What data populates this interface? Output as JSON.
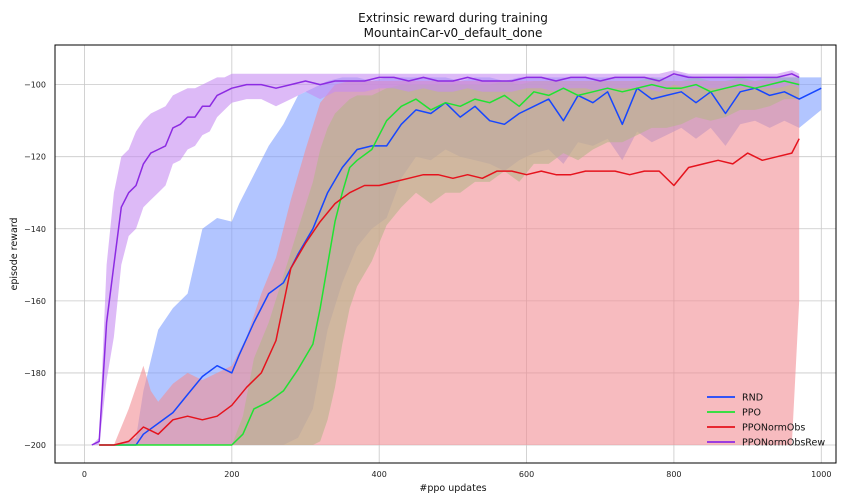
{
  "chart_data": {
    "type": "line",
    "title": "Extrinsic reward during training",
    "subtitle": "MountainCar-v0_default_done",
    "xlabel": "#ppo updates",
    "ylabel": "episode reward",
    "xlim": [
      -40,
      1020
    ],
    "ylim": [
      -205,
      -89
    ],
    "xticks": [
      0,
      200,
      400,
      600,
      800,
      1000
    ],
    "yticks": [
      -200,
      -180,
      -160,
      -140,
      -120,
      -100
    ],
    "grid": true,
    "legend_position": "bottom-right",
    "series": [
      {
        "name": "RND",
        "color": "#1646ff",
        "band_color": "#7f9eff",
        "x": [
          20,
          40,
          70,
          80,
          100,
          120,
          140,
          160,
          180,
          200,
          210,
          230,
          250,
          270,
          290,
          310,
          330,
          350,
          370,
          390,
          410,
          430,
          450,
          470,
          490,
          510,
          530,
          550,
          570,
          590,
          610,
          630,
          650,
          670,
          690,
          710,
          730,
          750,
          770,
          790,
          810,
          830,
          850,
          870,
          890,
          910,
          930,
          950,
          970,
          1000
        ],
        "y": [
          -200,
          -200,
          -200,
          -197,
          -194,
          -191,
          -186,
          -181,
          -178,
          -180,
          -175,
          -166,
          -158,
          -155,
          -147,
          -140,
          -130,
          -123,
          -118,
          -117,
          -117,
          -111,
          -107,
          -108,
          -105,
          -109,
          -106,
          -110,
          -111,
          -108,
          -106,
          -104,
          -110,
          -103,
          -105,
          -102,
          -111,
          -101,
          -104,
          -103,
          -102,
          -105,
          -102,
          -108,
          -102,
          -101,
          -103,
          -102,
          -104,
          -101
        ],
        "upper": [
          -200,
          -200,
          -198,
          -185,
          -168,
          -162,
          -158,
          -140,
          -137,
          -138,
          -133,
          -125,
          -117,
          -111,
          -103,
          -101,
          -99,
          -98,
          -98,
          -99,
          -98,
          -98,
          -98,
          -98,
          -98,
          -99,
          -98,
          -98,
          -99,
          -98,
          -98,
          -98,
          -98,
          -98,
          -98,
          -98,
          -98,
          -98,
          -98,
          -98,
          -97,
          -98,
          -98,
          -98,
          -98,
          -98,
          -98,
          -98,
          -98,
          -98
        ],
        "lower": [
          -200,
          -200,
          -200,
          -200,
          -200,
          -200,
          -200,
          -200,
          -200,
          -200,
          -200,
          -200,
          -200,
          -200,
          -198,
          -190,
          -168,
          -155,
          -145,
          -140,
          -137,
          -126,
          -120,
          -121,
          -118,
          -120,
          -121,
          -122,
          -124,
          -121,
          -119,
          -118,
          -122,
          -116,
          -117,
          -115,
          -121,
          -113,
          -116,
          -114,
          -112,
          -115,
          -112,
          -117,
          -111,
          -110,
          -112,
          -110,
          -112,
          -107
        ]
      },
      {
        "name": "PPO",
        "color": "#20e232",
        "band_color": "#5ff07a",
        "x": [
          20,
          60,
          100,
          150,
          200,
          215,
          230,
          250,
          270,
          290,
          310,
          320,
          330,
          340,
          350,
          360,
          370,
          390,
          410,
          430,
          450,
          470,
          490,
          510,
          530,
          550,
          570,
          590,
          610,
          630,
          650,
          670,
          690,
          710,
          730,
          750,
          770,
          790,
          810,
          830,
          850,
          870,
          890,
          910,
          930,
          950,
          970
        ],
        "y": [
          -200,
          -200,
          -200,
          -200,
          -200,
          -197,
          -190,
          -188,
          -185,
          -179,
          -172,
          -162,
          -150,
          -138,
          -130,
          -123,
          -121,
          -118,
          -110,
          -106,
          -104,
          -107,
          -105,
          -106,
          -104,
          -105,
          -103,
          -106,
          -102,
          -103,
          -101,
          -103,
          -102,
          -101,
          -102,
          -101,
          -100,
          -101,
          -101,
          -100,
          -102,
          -101,
          -100,
          -101,
          -100,
          -99,
          -100
        ],
        "upper": [
          -200,
          -200,
          -200,
          -200,
          -200,
          -192,
          -176,
          -166,
          -153,
          -140,
          -127,
          -118,
          -112,
          -108,
          -106,
          -104,
          -103,
          -103,
          -101,
          -100,
          -100,
          -100,
          -100,
          -100,
          -100,
          -100,
          -99,
          -100,
          -99,
          -99,
          -99,
          -99,
          -99,
          -99,
          -99,
          -99,
          -98,
          -99,
          -99,
          -98,
          -99,
          -99,
          -98,
          -99,
          -98,
          -98,
          -98
        ],
        "lower": [
          -200,
          -200,
          -200,
          -200,
          -200,
          -200,
          -200,
          -200,
          -200,
          -200,
          -200,
          -199,
          -193,
          -184,
          -172,
          -162,
          -156,
          -149,
          -139,
          -134,
          -130,
          -133,
          -130,
          -130,
          -127,
          -127,
          -124,
          -127,
          -122,
          -122,
          -119,
          -121,
          -118,
          -116,
          -116,
          -114,
          -112,
          -112,
          -111,
          -109,
          -110,
          -109,
          -107,
          -107,
          -106,
          -104,
          -104
        ]
      },
      {
        "name": "PPONormObs",
        "color": "#e5131d",
        "band_color": "#f28e94",
        "x": [
          20,
          40,
          60,
          80,
          90,
          100,
          120,
          140,
          160,
          180,
          200,
          220,
          240,
          260,
          280,
          300,
          320,
          340,
          360,
          380,
          400,
          420,
          440,
          460,
          480,
          500,
          520,
          540,
          560,
          580,
          600,
          620,
          640,
          660,
          680,
          700,
          720,
          740,
          760,
          780,
          800,
          820,
          840,
          860,
          880,
          900,
          920,
          940,
          960,
          970
        ],
        "y": [
          -200,
          -200,
          -199,
          -195,
          -196,
          -197,
          -193,
          -192,
          -193,
          -192,
          -189,
          -184,
          -180,
          -171,
          -151,
          -144,
          -138,
          -133,
          -130,
          -128,
          -128,
          -127,
          -126,
          -125,
          -125,
          -126,
          -125,
          -126,
          -124,
          -124,
          -125,
          -124,
          -125,
          -125,
          -124,
          -124,
          -124,
          -125,
          -124,
          -124,
          -128,
          -123,
          -122,
          -121,
          -122,
          -119,
          -121,
          -120,
          -119,
          -115
        ],
        "upper": [
          -200,
          -200,
          -190,
          -178,
          -185,
          -188,
          -183,
          -180,
          -182,
          -180,
          -178,
          -170,
          -158,
          -148,
          -132,
          -118,
          -105,
          -100,
          -99,
          -99,
          -99,
          -99,
          -99,
          -99,
          -99,
          -99,
          -99,
          -99,
          -99,
          -99,
          -99,
          -99,
          -99,
          -99,
          -99,
          -99,
          -99,
          -99,
          -99,
          -99,
          -99,
          -99,
          -99,
          -99,
          -99,
          -99,
          -99,
          -99,
          -99,
          -99
        ],
        "lower": [
          -200,
          -200,
          -200,
          -200,
          -200,
          -200,
          -200,
          -200,
          -200,
          -200,
          -200,
          -200,
          -200,
          -200,
          -200,
          -200,
          -200,
          -200,
          -200,
          -200,
          -200,
          -200,
          -200,
          -200,
          -200,
          -200,
          -200,
          -200,
          -200,
          -200,
          -200,
          -200,
          -200,
          -200,
          -200,
          -200,
          -200,
          -200,
          -200,
          -200,
          -200,
          -200,
          -200,
          -200,
          -200,
          -200,
          -200,
          -200,
          -200,
          -160
        ]
      },
      {
        "name": "PPONormObsRew",
        "color": "#8c2be2",
        "band_color": "#c78cf2",
        "x": [
          10,
          20,
          30,
          40,
          50,
          60,
          70,
          80,
          90,
          100,
          110,
          120,
          130,
          140,
          150,
          160,
          170,
          180,
          190,
          200,
          220,
          240,
          260,
          280,
          300,
          320,
          340,
          360,
          380,
          400,
          420,
          440,
          460,
          480,
          500,
          520,
          540,
          560,
          580,
          600,
          620,
          640,
          660,
          680,
          700,
          720,
          740,
          760,
          780,
          800,
          820,
          840,
          860,
          880,
          900,
          920,
          940,
          960,
          970
        ],
        "y": [
          -200,
          -199,
          -166,
          -150,
          -134,
          -130,
          -128,
          -122,
          -119,
          -118,
          -117,
          -112,
          -111,
          -109,
          -109,
          -106,
          -106,
          -103,
          -102,
          -101,
          -100,
          -100,
          -101,
          -100,
          -99,
          -100,
          -99,
          -99,
          -99,
          -98,
          -98,
          -99,
          -98,
          -99,
          -99,
          -98,
          -99,
          -99,
          -99,
          -98,
          -98,
          -99,
          -98,
          -98,
          -99,
          -98,
          -98,
          -98,
          -99,
          -97,
          -98,
          -98,
          -98,
          -98,
          -98,
          -98,
          -98,
          -97,
          -98
        ],
        "upper": [
          -200,
          -198,
          -150,
          -130,
          -120,
          -118,
          -113,
          -110,
          -108,
          -107,
          -106,
          -103,
          -102,
          -101,
          -101,
          -100,
          -99,
          -98,
          -98,
          -97,
          -97,
          -97,
          -97,
          -97,
          -97,
          -97,
          -97,
          -97,
          -97,
          -97,
          -97,
          -97,
          -97,
          -97,
          -97,
          -97,
          -97,
          -97,
          -97,
          -97,
          -97,
          -97,
          -97,
          -97,
          -97,
          -97,
          -97,
          -97,
          -97,
          -96,
          -97,
          -97,
          -97,
          -97,
          -97,
          -97,
          -97,
          -96,
          -97
        ],
        "lower": [
          -200,
          -200,
          -182,
          -170,
          -150,
          -142,
          -140,
          -134,
          -132,
          -130,
          -128,
          -122,
          -121,
          -118,
          -117,
          -114,
          -113,
          -109,
          -107,
          -105,
          -104,
          -104,
          -106,
          -104,
          -102,
          -104,
          -102,
          -102,
          -102,
          -101,
          -101,
          -102,
          -101,
          -102,
          -102,
          -101,
          -102,
          -102,
          -102,
          -101,
          -101,
          -102,
          -101,
          -101,
          -102,
          -101,
          -101,
          -101,
          -102,
          -100,
          -101,
          -101,
          -101,
          -101,
          -101,
          -101,
          -101,
          -100,
          -101
        ]
      }
    ]
  }
}
